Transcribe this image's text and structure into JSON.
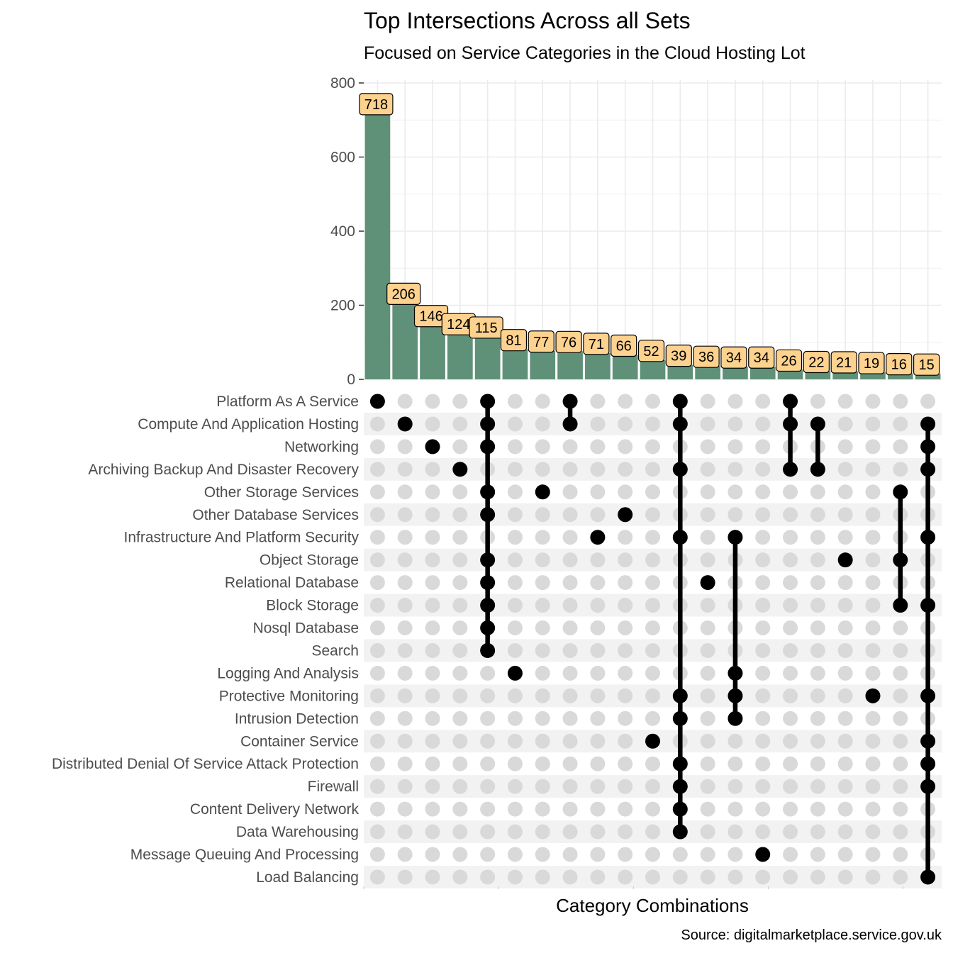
{
  "title": "Top Intersections Across all Sets",
  "subtitle": "Focused on Service Categories in the Cloud Hosting Lot",
  "caption": "Source: digitalmarketplace.service.gov.uk",
  "colors": {
    "bar": "#5f9178",
    "label_fill": "#fdd28e",
    "dot_active": "#000000",
    "dot_inactive": "#d9d9d9",
    "stripe": "#f2f2f2",
    "grid": "#ebebeb"
  },
  "chart_data": {
    "type": "bar",
    "title": "Top Intersections Across all Sets",
    "subtitle": "Focused on Service Categories in the Cloud Hosting Lot",
    "xlabel": "Category Combinations",
    "ylabel": "",
    "ylim": [
      0,
      800
    ],
    "yticks": [
      0,
      200,
      400,
      600,
      800
    ],
    "values": [
      718,
      206,
      146,
      124,
      115,
      81,
      77,
      76,
      71,
      66,
      52,
      39,
      36,
      34,
      34,
      26,
      22,
      21,
      19,
      16,
      15
    ],
    "value_labels": [
      "718",
      "206",
      "146",
      "124",
      "115",
      "81",
      "77",
      "76",
      "71",
      "66",
      "52",
      "39",
      "36",
      "34",
      "34",
      "26",
      "22",
      "21",
      "19",
      "16",
      "15"
    ],
    "sets": [
      "Platform As A Service",
      "Compute And Application Hosting",
      "Networking",
      "Archiving Backup And Disaster Recovery",
      "Other Storage Services",
      "Other Database Services",
      "Infrastructure And Platform Security",
      "Object Storage",
      "Relational Database",
      "Block Storage",
      "Nosql Database",
      "Search",
      "Logging And Analysis",
      "Protective Monitoring",
      "Intrusion Detection",
      "Container Service",
      "Distributed Denial Of Service Attack  Protection",
      "Firewall",
      "Content Delivery Network",
      "Data Warehousing",
      "Message Queuing And Processing",
      "Load Balancing"
    ],
    "combinations": [
      [
        0
      ],
      [
        1
      ],
      [
        2
      ],
      [
        3
      ],
      [
        0,
        1,
        2,
        4,
        5,
        7,
        8,
        9,
        10,
        11
      ],
      [
        12
      ],
      [
        4
      ],
      [
        0,
        1
      ],
      [
        6
      ],
      [
        5
      ],
      [
        15
      ],
      [
        0,
        1,
        3,
        6,
        13,
        14,
        16,
        17,
        18,
        19
      ],
      [
        8
      ],
      [
        6,
        12,
        13,
        14
      ],
      [
        20
      ],
      [
        0,
        1,
        3
      ],
      [
        1,
        3
      ],
      [
        7
      ],
      [
        13
      ],
      [
        4,
        7,
        9
      ],
      [
        1,
        2,
        3,
        6,
        9,
        13,
        15,
        16,
        17,
        21
      ]
    ]
  }
}
